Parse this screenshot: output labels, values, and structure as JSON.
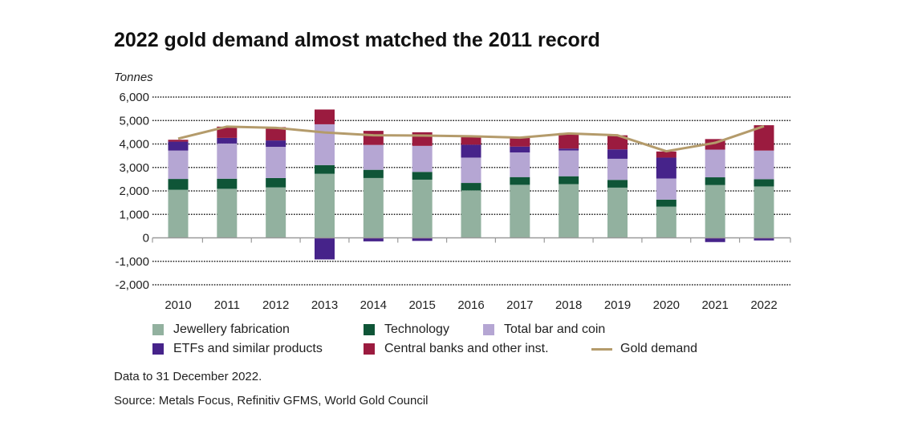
{
  "title": "2022 gold demand almost matched the 2011 record",
  "footnote": "Data to 31 December 2022.",
  "source": "Source: Metals Focus, Refinitiv GFMS, World Gold Council",
  "chart_data": {
    "type": "bar",
    "stacked": true,
    "ylabel": "Tonnes",
    "ylim": [
      -2000,
      6000
    ],
    "yticks": [
      6000,
      5000,
      4000,
      3000,
      2000,
      1000,
      0,
      -1000,
      -2000
    ],
    "ytick_labels": [
      "6,000",
      "5,000",
      "4,000",
      "3,000",
      "2,000",
      "1,000",
      "0",
      "-1,000",
      "-2,000"
    ],
    "grid": true,
    "legend_position": "bottom",
    "categories": [
      "2010",
      "2011",
      "2012",
      "2013",
      "2014",
      "2015",
      "2016",
      "2017",
      "2018",
      "2019",
      "2020",
      "2021",
      "2022"
    ],
    "series": [
      {
        "name": "Jewellery fabrication",
        "color": "#92b19f",
        "values": [
          2050,
          2090,
          2150,
          2730,
          2550,
          2480,
          2020,
          2260,
          2290,
          2140,
          1330,
          2250,
          2190
        ]
      },
      {
        "name": "Technology",
        "color": "#0f5537",
        "values": [
          460,
          430,
          400,
          370,
          350,
          330,
          320,
          330,
          335,
          330,
          300,
          330,
          310
        ]
      },
      {
        "name": "Total bar and coin",
        "color": "#b5a6d3",
        "values": [
          1210,
          1500,
          1330,
          1740,
          1060,
          1110,
          1080,
          1050,
          1100,
          900,
          900,
          1180,
          1220
        ]
      },
      {
        "name": "ETFs and similar products",
        "color": "#46238a",
        "values": [
          380,
          240,
          270,
          -920,
          -150,
          -130,
          550,
          250,
          80,
          400,
          890,
          -180,
          -110
        ]
      },
      {
        "name": "Central banks and other inst.",
        "color": "#9b1b3f",
        "values": [
          80,
          480,
          570,
          630,
          600,
          580,
          390,
          380,
          660,
          600,
          260,
          450,
          1080
        ]
      }
    ],
    "line": {
      "name": "Gold demand",
      "color": "#b49b6b",
      "values": [
        4230,
        4740,
        4690,
        4490,
        4370,
        4360,
        4330,
        4270,
        4450,
        4370,
        3690,
        4050,
        4760
      ]
    }
  }
}
